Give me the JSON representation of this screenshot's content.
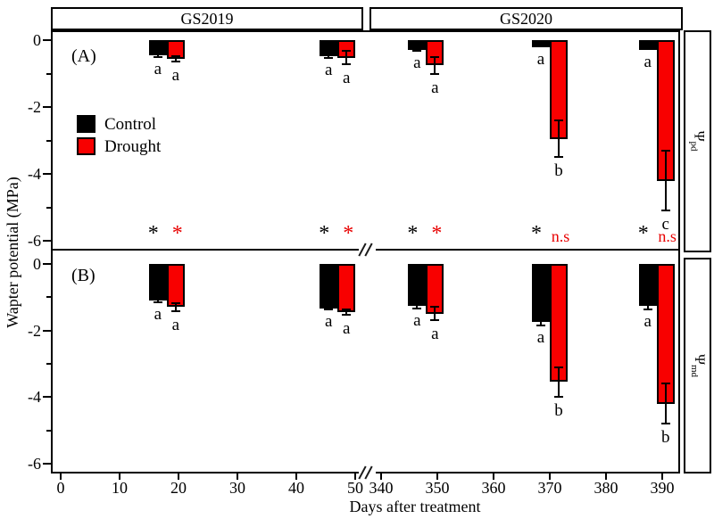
{
  "figure": {
    "headers": [
      {
        "label": "GS2019"
      },
      {
        "label": "GS2020"
      }
    ],
    "panel_a_label": "(A)",
    "panel_b_label": "(B)",
    "y_axis_title": "Wapter potential (MPa)",
    "x_axis_title": "Days after treatment",
    "side_labels": {
      "psi": "Ψ",
      "pd": "pd",
      "md": "md"
    },
    "legend": [
      {
        "label": "Control",
        "color": "#000000"
      },
      {
        "label": "Drought",
        "color": "#f80000"
      }
    ]
  },
  "chart_data": {
    "type": "bar",
    "title": "",
    "xlabel": "Days after treatment",
    "ylabel": "Wapter potential (MPa)",
    "legend_position": "upper-left-panel-A",
    "grid": false,
    "x_break": [
      50,
      340
    ],
    "x_ticks": [
      0,
      10,
      20,
      30,
      40,
      50,
      340,
      350,
      360,
      370,
      380,
      390
    ],
    "y_ticks": [
      0,
      -2,
      -4,
      -6
    ],
    "y_minor_ticks": [
      -1,
      -3,
      -5
    ],
    "ylim": [
      -6.5,
      0
    ],
    "series_names": [
      "Control",
      "Drought"
    ],
    "colors": {
      "control": "#000000",
      "drought": "#f80000"
    },
    "panels": [
      {
        "name": "A",
        "side_label": "Ψpd",
        "groups": [
          {
            "day": 18,
            "control": {
              "value": -0.45,
              "err": 0.05,
              "letter": "a"
            },
            "drought": {
              "value": -0.55,
              "err": 0.08,
              "letter": "a"
            },
            "sig_control": "*",
            "sig_drought": "*"
          },
          {
            "day": 47,
            "control": {
              "value": -0.48,
              "err": 0.05,
              "letter": "a"
            },
            "drought": {
              "value": -0.52,
              "err": 0.2,
              "letter": "a"
            },
            "sig_control": "*",
            "sig_drought": "*"
          },
          {
            "day": 348,
            "control": {
              "value": -0.28,
              "err": 0.05,
              "letter": "a"
            },
            "drought": {
              "value": -0.75,
              "err": 0.25,
              "letter": "a"
            },
            "sig_control": "*",
            "sig_drought": "*"
          },
          {
            "day": 370,
            "control": {
              "value": -0.22,
              "err": 0.0,
              "letter": "a"
            },
            "drought": {
              "value": -2.95,
              "err": 0.55,
              "letter": "b"
            },
            "sig_control": "*",
            "sig_drought": "n.s"
          },
          {
            "day": 389,
            "control": {
              "value": -0.3,
              "err": 0.0,
              "letter": "a"
            },
            "drought": {
              "value": -4.2,
              "err": 0.9,
              "letter": "c"
            },
            "sig_control": "*",
            "sig_drought": "n.s"
          }
        ]
      },
      {
        "name": "B",
        "side_label": "Ψmd",
        "groups": [
          {
            "day": 18,
            "control": {
              "value": -1.1,
              "err": 0.05,
              "letter": "a"
            },
            "drought": {
              "value": -1.3,
              "err": 0.12,
              "letter": "a"
            }
          },
          {
            "day": 47,
            "control": {
              "value": -1.33,
              "err": 0.05,
              "letter": "a"
            },
            "drought": {
              "value": -1.45,
              "err": 0.08,
              "letter": "a"
            }
          },
          {
            "day": 348,
            "control": {
              "value": -1.25,
              "err": 0.08,
              "letter": "a"
            },
            "drought": {
              "value": -1.5,
              "err": 0.2,
              "letter": "a"
            }
          },
          {
            "day": 370,
            "control": {
              "value": -1.75,
              "err": 0.1,
              "letter": "a"
            },
            "drought": {
              "value": -3.55,
              "err": 0.45,
              "letter": "b"
            }
          },
          {
            "day": 389,
            "control": {
              "value": -1.25,
              "err": 0.12,
              "letter": "a"
            },
            "drought": {
              "value": -4.2,
              "err": 0.6,
              "letter": "b"
            }
          }
        ]
      }
    ]
  }
}
